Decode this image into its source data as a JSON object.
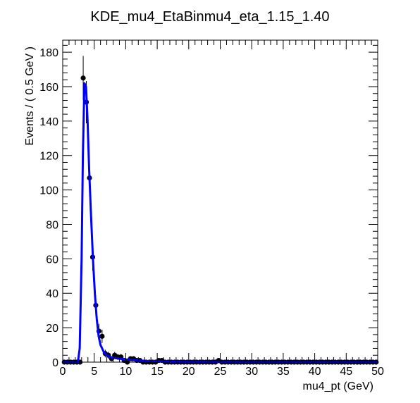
{
  "chart_data": {
    "type": "scatter",
    "title": "KDE_mu4_EtaBinmu4_eta_1.15_1.40",
    "xlabel": "mu4_pt (GeV)",
    "ylabel": "Events / ( 0.5 GeV )",
    "xlim": [
      0,
      50
    ],
    "ylim": [
      0,
      187
    ],
    "x_ticks": [
      "0",
      "5",
      "10",
      "15",
      "20",
      "25",
      "30",
      "35",
      "40",
      "45",
      "50"
    ],
    "y_ticks": [
      "0",
      "20",
      "40",
      "60",
      "80",
      "100",
      "120",
      "140",
      "160",
      "180"
    ],
    "grid": false,
    "legend": "none",
    "colors": {
      "data": "#000000",
      "fit": "#0000ff"
    },
    "series": [
      {
        "type": "points_with_errors",
        "x": [
          0.25,
          0.75,
          1.25,
          1.75,
          2.25,
          2.75,
          3.25,
          3.75,
          4.25,
          4.75,
          5.25,
          5.75,
          6.25,
          6.75,
          7.25,
          7.75,
          8.25,
          8.75,
          9.25,
          9.75,
          10.25,
          10.75,
          11.25,
          11.75,
          12.25,
          12.75,
          13.25,
          13.75,
          14.25,
          14.75,
          15.25,
          15.75,
          16.25,
          16.75,
          17.25,
          17.75,
          18.25,
          18.75,
          19.25,
          19.75,
          20.25,
          20.75,
          21.25,
          21.75,
          22.25,
          22.75,
          23.25,
          23.75,
          24.25,
          24.75,
          25.25,
          25.75,
          26.25,
          26.75,
          27.25,
          27.75,
          28.25,
          28.75,
          29.25,
          29.75,
          30.25,
          30.75,
          31.25,
          31.75,
          32.25,
          32.75,
          33.25,
          33.75,
          34.25,
          34.75,
          35.25,
          35.75,
          36.25,
          36.75,
          37.25,
          37.75,
          38.25,
          38.75,
          39.25,
          39.75,
          40.25,
          40.75,
          41.25,
          41.75,
          42.25,
          42.75,
          43.25,
          43.75,
          44.25,
          44.75,
          45.25,
          45.75,
          46.25,
          46.75,
          47.25,
          47.75,
          48.25,
          48.75,
          49.25,
          49.75
        ],
        "y": [
          0,
          0,
          0,
          0,
          0,
          0,
          165,
          151,
          107,
          61,
          33,
          18,
          15,
          5,
          4,
          2,
          4,
          3,
          3,
          1,
          0,
          2,
          2,
          1,
          1,
          0,
          0,
          0,
          0,
          0,
          1,
          1,
          0,
          0,
          0,
          0,
          0,
          0,
          0,
          0,
          0,
          0,
          0,
          0,
          0,
          0,
          0,
          0,
          0,
          1,
          0,
          0,
          0,
          0,
          0,
          0,
          0,
          0,
          0,
          0,
          0,
          0,
          0,
          0,
          0,
          0,
          0,
          0,
          0,
          0,
          0,
          0,
          0,
          0,
          0,
          0,
          0,
          0,
          0,
          0,
          0,
          0,
          0,
          0,
          0,
          0,
          0,
          0,
          0,
          0,
          0,
          0,
          0,
          0,
          0,
          0,
          0,
          0,
          0,
          0
        ]
      },
      {
        "type": "curve",
        "x": [
          0,
          2.4,
          2.7,
          3.0,
          3.2,
          3.45,
          3.7,
          3.95,
          4.2,
          4.5,
          4.8,
          5.1,
          5.4,
          5.7,
          6.0,
          6.5,
          7.0,
          7.5,
          8.0,
          9.0,
          10.0,
          11.0,
          12.0,
          14.0,
          16.0,
          20.0,
          30.0,
          40.0,
          50.0
        ],
        "y": [
          0,
          0,
          8,
          60,
          120,
          162,
          160,
          140,
          112,
          85,
          60,
          40,
          25,
          15,
          10,
          6,
          4,
          3,
          2.5,
          2,
          1.5,
          1.5,
          1,
          0.5,
          0.3,
          0.1,
          0,
          0,
          0
        ]
      }
    ]
  }
}
